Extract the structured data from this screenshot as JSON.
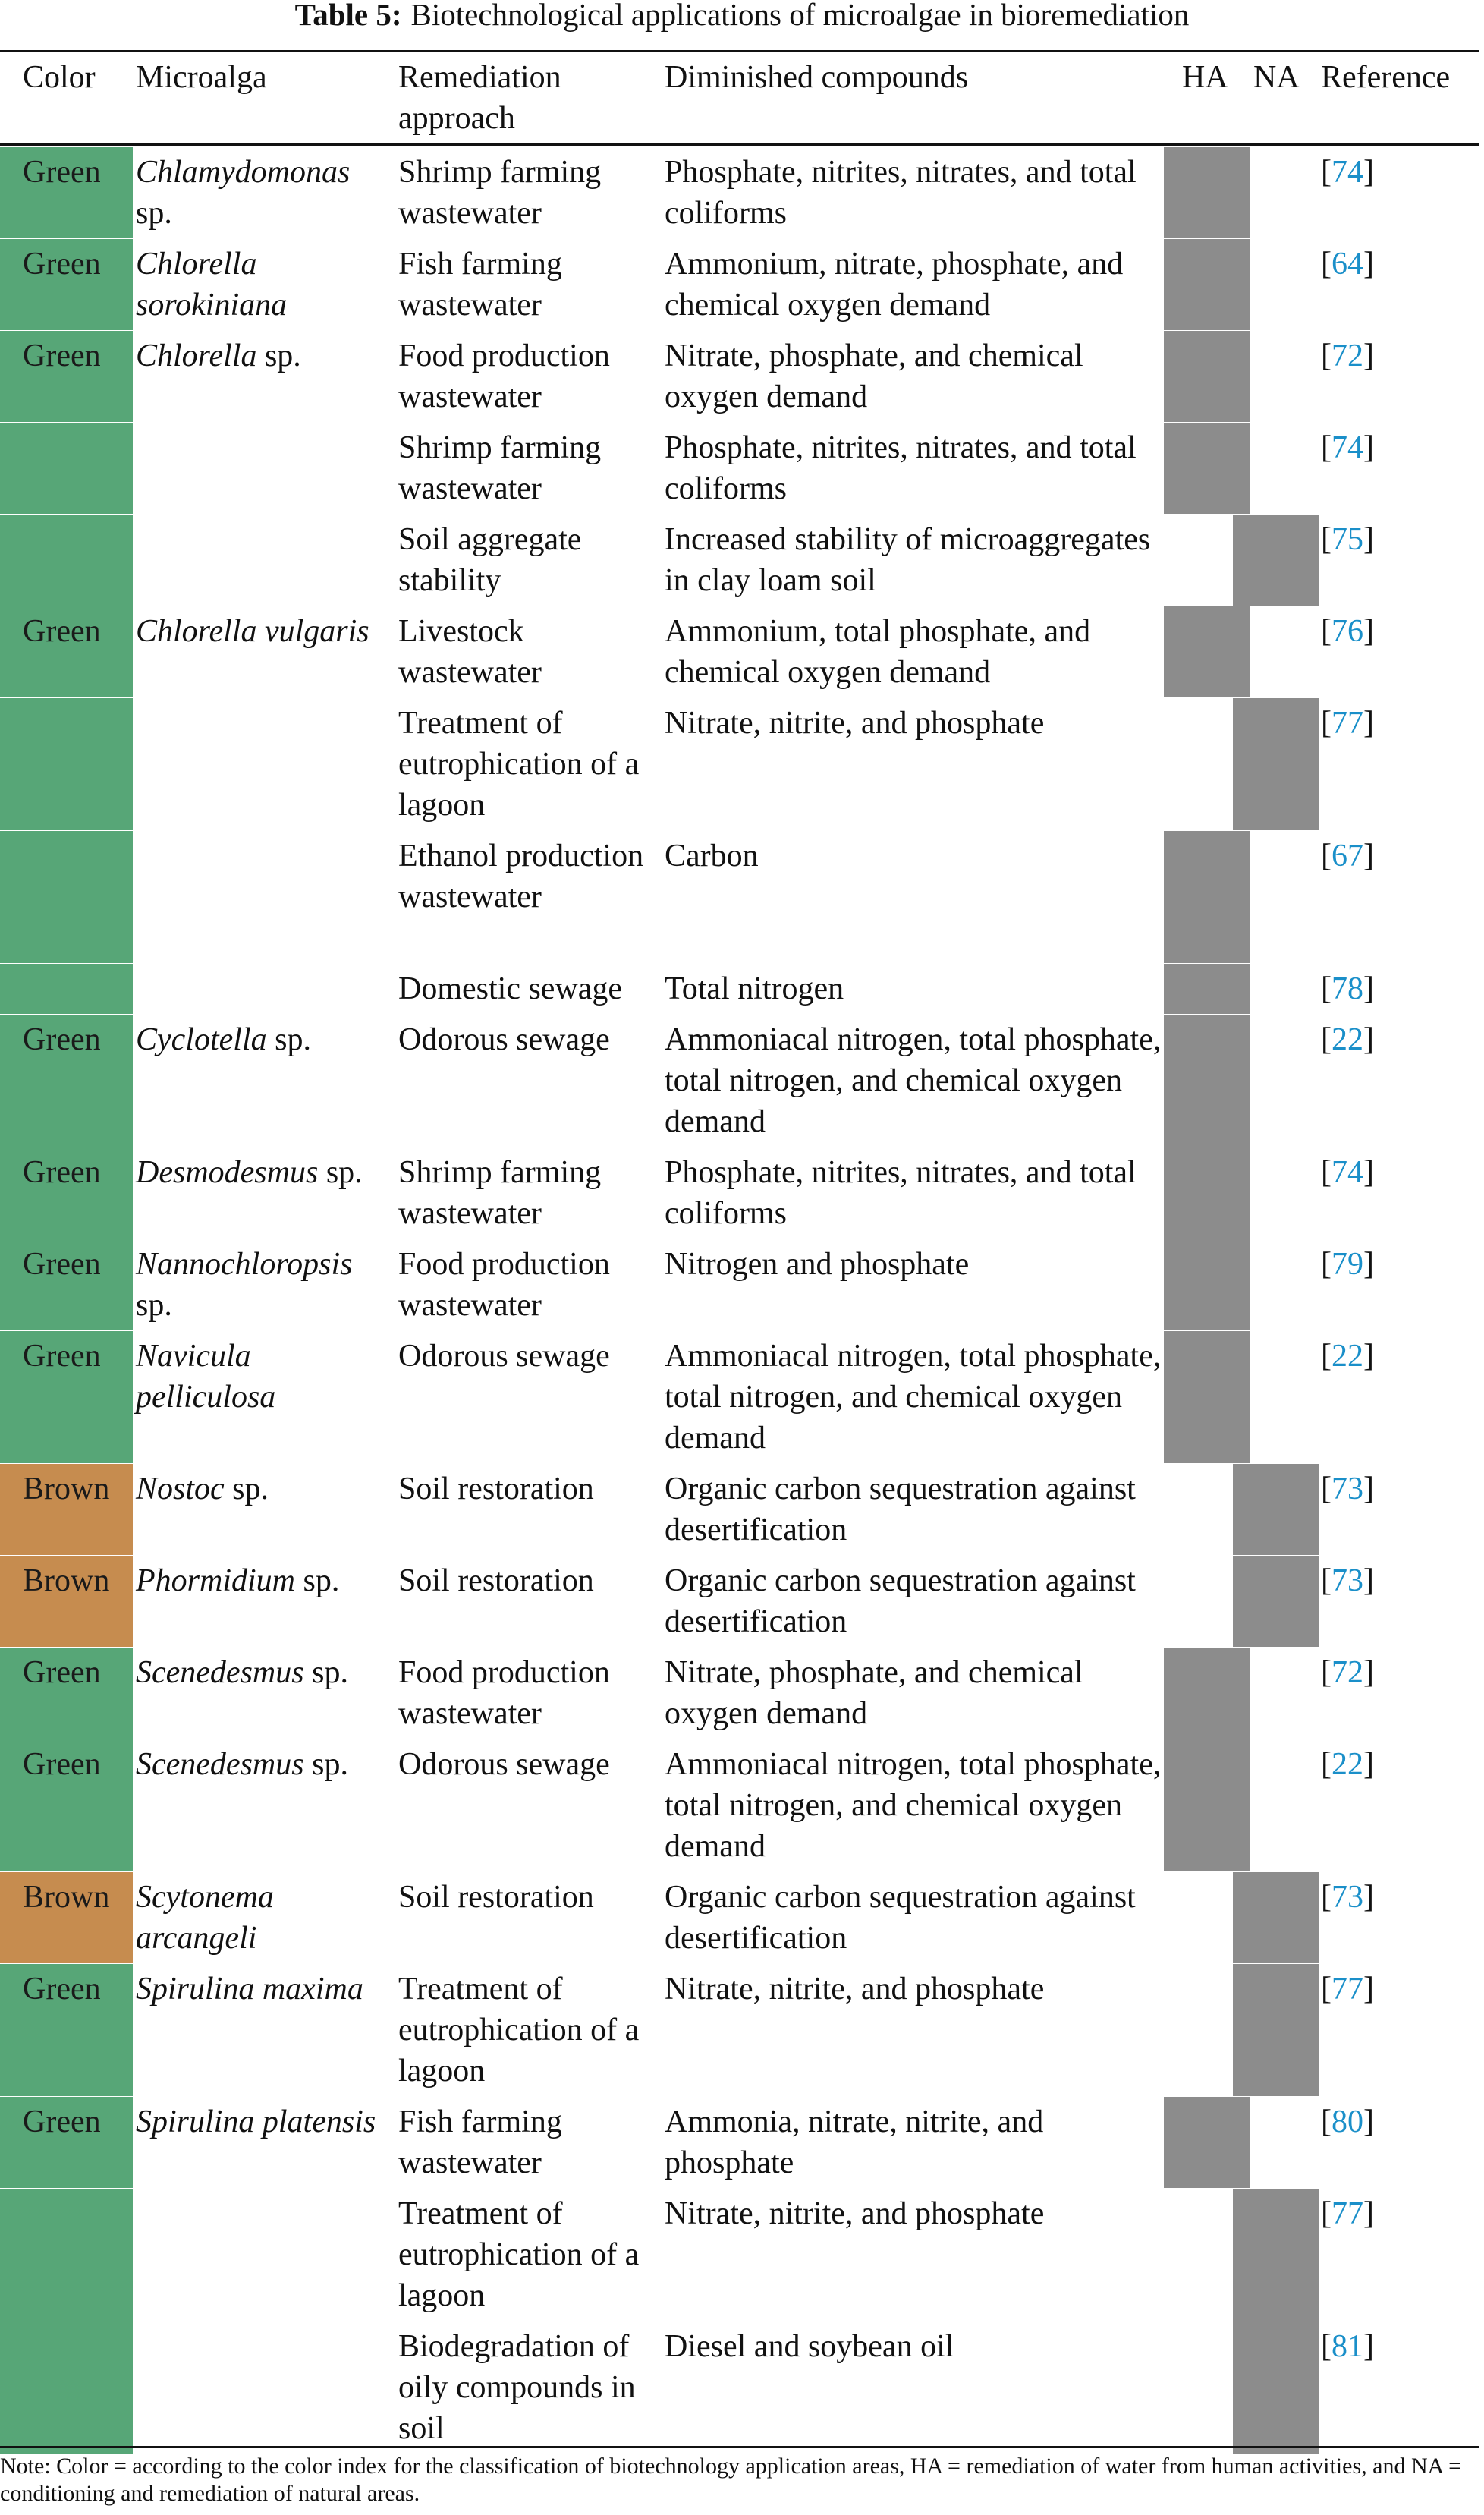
{
  "title": {
    "label": "Table 5:",
    "text": "Biotechnological applications of microalgae in bioremediation"
  },
  "colors": {
    "Green": "#57a677",
    "Brown": "#c68c4f",
    "bar": "#8c8c8c",
    "link": "#1a8fc9"
  },
  "columns": {
    "color": "Color",
    "microalga": "Microalga",
    "remediation": "Remediation approach",
    "diminished": "Diminished compounds",
    "ha": "HA",
    "na": "NA",
    "reference": "Reference"
  },
  "rows": [
    {
      "color": "Green",
      "show_color": true,
      "genus": "Chlamydomonas",
      "suffix": "sp.",
      "remediation": "Shrimp farming wastewater",
      "compounds": "Phosphate, nitrites, nitrates, and total coliforms",
      "area": "HA",
      "ref": "74",
      "lines": 2
    },
    {
      "color": "Green",
      "show_color": true,
      "genus": "Chlorella sorokiniana",
      "suffix": "",
      "remediation": "Fish farming wastewater",
      "compounds": "Ammonium, nitrate, phosphate, and chemical oxygen demand",
      "area": "HA",
      "ref": "64",
      "lines": 2
    },
    {
      "color": "Green",
      "show_color": true,
      "genus": "Chlorella",
      "suffix": "sp.",
      "remediation": "Food production wastewater",
      "compounds": "Nitrate, phosphate, and chemical oxygen demand",
      "area": "HA",
      "ref": "72",
      "lines": 2
    },
    {
      "color": "Green",
      "show_color": false,
      "genus": "",
      "suffix": "",
      "remediation": "Shrimp farming wastewater",
      "compounds": "Phosphate, nitrites, nitrates, and total coliforms",
      "area": "HA",
      "ref": "74",
      "lines": 2
    },
    {
      "color": "Green",
      "show_color": false,
      "genus": "",
      "suffix": "",
      "remediation": "Soil aggregate stability",
      "compounds": "Increased stability of microaggregates in clay loam soil",
      "area": "NA",
      "ref": "75",
      "lines": 2
    },
    {
      "color": "Green",
      "show_color": true,
      "genus": "Chlorella vulgaris",
      "suffix": "",
      "remediation": "Livestock wastewater",
      "compounds": "Ammonium, total phosphate, and chemical oxygen demand",
      "area": "HA",
      "ref": "76",
      "lines": 2
    },
    {
      "color": "Green",
      "show_color": false,
      "genus": "",
      "suffix": "",
      "remediation": "Treatment of eutrophication of a lagoon",
      "compounds": "Nitrate, nitrite, and phosphate",
      "area": "NA",
      "ref": "77",
      "lines": 3
    },
    {
      "color": "Green",
      "show_color": false,
      "genus": "",
      "suffix": "",
      "remediation": "Ethanol production wastewater",
      "compounds": "Carbon",
      "area": "HA",
      "ref": "67",
      "lines": 3
    },
    {
      "color": "Green",
      "show_color": false,
      "genus": "",
      "suffix": "",
      "remediation": "Domestic sewage",
      "compounds": "Total nitrogen",
      "area": "HA",
      "ref": "78",
      "lines": 1
    },
    {
      "color": "Green",
      "show_color": true,
      "genus": "Cyclotella",
      "suffix": "sp.",
      "remediation": "Odorous sewage",
      "compounds": "Ammoniacal nitrogen, total phosphate, total nitrogen, and chemical oxygen demand",
      "area": "HA",
      "ref": "22",
      "lines": 3
    },
    {
      "color": "Green",
      "show_color": true,
      "genus": "Desmodesmus",
      "suffix": "sp.",
      "remediation": "Shrimp farming wastewater",
      "compounds": "Phosphate, nitrites, nitrates, and total coliforms",
      "area": "HA",
      "ref": "74",
      "lines": 2
    },
    {
      "color": "Green",
      "show_color": true,
      "genus": "Nannochloropsis",
      "suffix": "sp.",
      "remediation": "Food production wastewater",
      "compounds": "Nitrogen and phosphate",
      "area": "HA",
      "ref": "79",
      "lines": 2
    },
    {
      "color": "Green",
      "show_color": true,
      "genus": "Navicula pelliculosa",
      "suffix": "",
      "remediation": "Odorous sewage",
      "compounds": "Ammoniacal nitrogen, total phosphate, total nitrogen, and chemical oxygen demand",
      "area": "HA",
      "ref": "22",
      "lines": 3
    },
    {
      "color": "Brown",
      "show_color": true,
      "genus": "Nostoc",
      "suffix": "sp.",
      "remediation": "Soil restoration",
      "compounds": "Organic carbon sequestration against desertification",
      "area": "NA",
      "ref": "73",
      "lines": 2
    },
    {
      "color": "Brown",
      "show_color": true,
      "genus": "Phormidium",
      "suffix": "sp.",
      "remediation": "Soil restoration",
      "compounds": "Organic carbon sequestration against desertification",
      "area": "NA",
      "ref": "73",
      "lines": 2
    },
    {
      "color": "Green",
      "show_color": true,
      "genus": "Scenedesmus",
      "suffix": "sp.",
      "remediation": "Food production wastewater",
      "compounds": "Nitrate, phosphate, and chemical oxygen demand",
      "area": "HA",
      "ref": "72",
      "lines": 2
    },
    {
      "color": "Green",
      "show_color": true,
      "genus": "Scenedesmus",
      "suffix": "sp.",
      "remediation": "Odorous sewage",
      "compounds": "Ammoniacal nitrogen, total phosphate, total nitrogen, and chemical oxygen demand",
      "area": "HA",
      "ref": "22",
      "lines": 3
    },
    {
      "color": "Brown",
      "show_color": true,
      "genus": "Scytonema arcangeli",
      "suffix": "",
      "remediation": "Soil restoration",
      "compounds": "Organic carbon sequestration against desertification",
      "area": "NA",
      "ref": "73",
      "lines": 2
    },
    {
      "color": "Green",
      "show_color": true,
      "genus": "Spirulina maxima",
      "suffix": "",
      "remediation": "Treatment of eutrophication of a lagoon",
      "compounds": "Nitrate, nitrite, and phosphate",
      "area": "NA",
      "ref": "77",
      "lines": 3
    },
    {
      "color": "Green",
      "show_color": true,
      "genus": "Spirulina platensis",
      "suffix": "",
      "remediation": "Fish farming wastewater",
      "compounds": "Ammonia, nitrate, nitrite, and phosphate",
      "area": "HA",
      "ref": "80",
      "lines": 2
    },
    {
      "color": "Green",
      "show_color": false,
      "genus": "",
      "suffix": "",
      "remediation": "Treatment of eutrophication of a lagoon",
      "compounds": "Nitrate, nitrite, and phosphate",
      "area": "NA",
      "ref": "77",
      "lines": 3
    },
    {
      "color": "Green",
      "show_color": false,
      "genus": "",
      "suffix": "",
      "remediation": "Biodegradation of oily compounds in soil",
      "compounds": "Diesel and soybean oil",
      "area": "NA",
      "ref": "81",
      "lines": 3
    }
  ],
  "note": "Note: Color = according to the color index for the classification of biotechnology application areas, HA = remediation of water from human activities, and NA = conditioning and remediation of natural areas."
}
